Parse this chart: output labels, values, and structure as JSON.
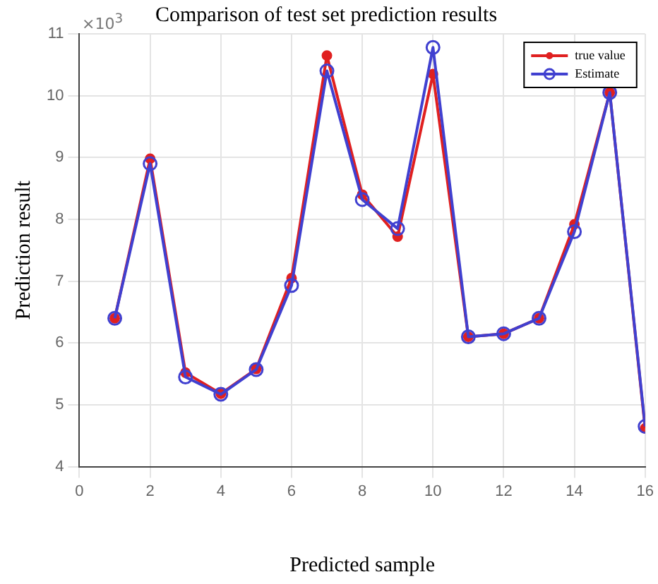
{
  "chart_data": {
    "type": "line",
    "title": "Comparison of test set prediction results",
    "xlabel": "Predicted sample",
    "ylabel": "Prediction result",
    "annotations": [
      "×10$^{3}$"
    ],
    "x": [
      1,
      2,
      3,
      4,
      5,
      6,
      7,
      8,
      9,
      10,
      11,
      12,
      13,
      14,
      15,
      16
    ],
    "series": [
      {
        "name": "true value",
        "color": "#e02020",
        "values": [
          6.4,
          8.98,
          5.52,
          5.18,
          5.58,
          7.05,
          10.65,
          8.4,
          7.72,
          10.35,
          6.1,
          6.15,
          6.4,
          7.92,
          10.05,
          4.62
        ]
      },
      {
        "name": "Estimate",
        "color": "#4040d0",
        "values": [
          6.4,
          8.9,
          5.45,
          5.17,
          5.57,
          6.93,
          10.4,
          8.32,
          7.85,
          10.78,
          6.1,
          6.15,
          6.4,
          7.8,
          10.05,
          4.65
        ]
      }
    ],
    "xlim": [
      0,
      16
    ],
    "xticks": [
      0,
      2,
      4,
      6,
      8,
      10,
      12,
      14,
      16
    ],
    "ylim": [
      4,
      11
    ],
    "yticks": [
      4,
      5,
      6,
      7,
      8,
      9,
      10,
      11
    ],
    "grid": true,
    "legend": "top right",
    "marker": "circle",
    "line_style": "solid"
  }
}
